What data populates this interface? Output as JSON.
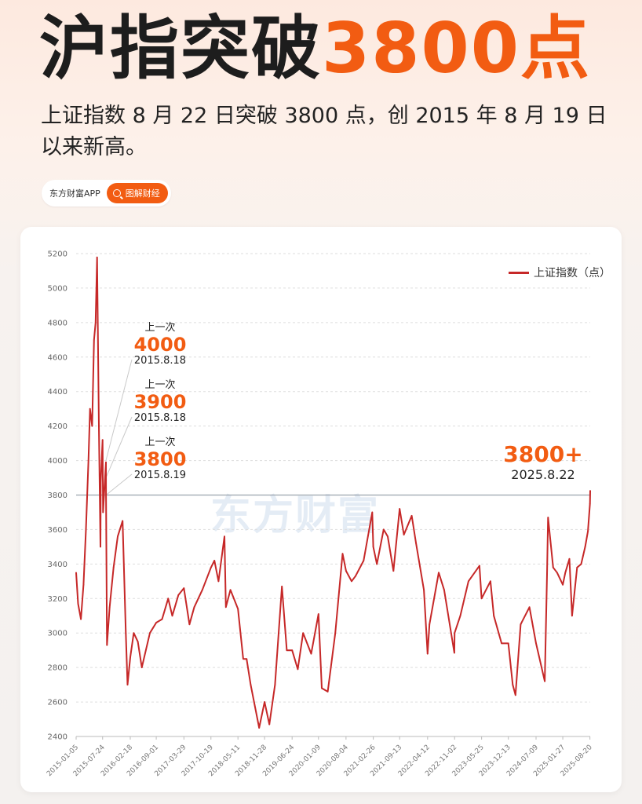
{
  "header": {
    "title_main": "沪指突破",
    "title_accent": "3800点",
    "subtitle": "上证指数 8 月 22 日突破 3800 点，创 2015 年 8 月 19 日以来新高。"
  },
  "source": {
    "name": "东方财富APP",
    "tag": "图解财经"
  },
  "watermark": "东方财富",
  "colors": {
    "accent": "#f25c12",
    "line": "#c62828",
    "grid": "#dddddd"
  },
  "annotations": {
    "a4000": {
      "label": "上一次",
      "value": "4000",
      "date": "2015.8.18"
    },
    "a3900": {
      "label": "上一次",
      "value": "3900",
      "date": "2015.8.18"
    },
    "a3800": {
      "label": "上一次",
      "value": "3800",
      "date": "2015.8.19"
    },
    "latest": {
      "value": "3800+",
      "date": "2025.8.22"
    }
  },
  "chart_data": {
    "type": "line",
    "legend": "上证指数（点）",
    "legend_position": "top-right",
    "grid": true,
    "ylim": [
      2400,
      5200
    ],
    "yticks": [
      2400,
      2600,
      2800,
      3000,
      3200,
      3400,
      3600,
      3800,
      4000,
      4200,
      4400,
      4600,
      4800,
      5000,
      5200
    ],
    "reference_line": 3800,
    "xlim": [
      "2015-01-05",
      "2025-08-22"
    ],
    "xticks": [
      "2015-01-05",
      "2015-07-24",
      "2016-02-18",
      "2016-09-01",
      "2017-03-29",
      "2017-10-19",
      "2018-05-11",
      "2018-11-28",
      "2019-06-24",
      "2020-01-09",
      "2020-08-04",
      "2021-02-26",
      "2021-09-13",
      "2022-04-12",
      "2022-11-02",
      "2023-05-25",
      "2023-12-13",
      "2024-07-09",
      "2025-01-27",
      "2025-08-20"
    ],
    "series": [
      {
        "name": "上证指数（点）",
        "x": [
          "2015-01-05",
          "2015-01-20",
          "2015-02-10",
          "2015-03-02",
          "2015-03-20",
          "2015-04-08",
          "2015-04-20",
          "2015-05-06",
          "2015-05-20",
          "2015-06-01",
          "2015-06-12",
          "2015-06-26",
          "2015-07-08",
          "2015-07-10",
          "2015-07-24",
          "2015-07-27",
          "2015-08-18",
          "2015-08-19",
          "2015-08-21",
          "2015-08-26",
          "2015-09-15",
          "2015-10-15",
          "2015-11-15",
          "2015-12-22",
          "2016-01-15",
          "2016-01-28",
          "2016-02-18",
          "2016-03-15",
          "2016-04-15",
          "2016-05-15",
          "2016-07-15",
          "2016-09-01",
          "2016-10-15",
          "2016-11-30",
          "2016-12-31",
          "2017-02-15",
          "2017-03-29",
          "2017-05-10",
          "2017-06-15",
          "2017-08-15",
          "2017-10-19",
          "2017-11-14",
          "2017-12-15",
          "2018-01-29",
          "2018-02-09",
          "2018-03-15",
          "2018-05-11",
          "2018-06-20",
          "2018-07-15",
          "2018-08-15",
          "2018-10-18",
          "2018-11-28",
          "2019-01-03",
          "2019-02-15",
          "2019-04-08",
          "2019-05-15",
          "2019-06-24",
          "2019-08-06",
          "2019-09-15",
          "2019-11-15",
          "2020-01-09",
          "2020-02-03",
          "2020-03-19",
          "2020-05-15",
          "2020-07-09",
          "2020-08-04",
          "2020-09-15",
          "2020-10-15",
          "2020-12-15",
          "2021-02-18",
          "2021-02-26",
          "2021-03-25",
          "2021-05-15",
          "2021-06-15",
          "2021-07-28",
          "2021-09-13",
          "2021-10-15",
          "2021-12-13",
          "2022-01-15",
          "2022-03-15",
          "2022-04-12",
          "2022-04-26",
          "2022-07-05",
          "2022-08-15",
          "2022-10-31",
          "2022-11-02",
          "2022-12-15",
          "2023-02-15",
          "2023-05-09",
          "2023-05-25",
          "2023-07-31",
          "2023-08-25",
          "2023-10-23",
          "2023-12-13",
          "2024-01-15",
          "2024-02-05",
          "2024-03-15",
          "2024-05-20",
          "2024-07-09",
          "2024-09-13",
          "2024-09-30",
          "2024-10-08",
          "2024-11-15",
          "2024-12-15",
          "2025-01-27",
          "2025-02-15",
          "2025-03-18",
          "2025-04-07",
          "2025-05-15",
          "2025-06-15",
          "2025-07-15",
          "2025-08-05",
          "2025-08-20",
          "2025-08-22"
        ],
        "y": [
          3350,
          3170,
          3080,
          3280,
          3600,
          4000,
          4300,
          4200,
          4700,
          4800,
          5178,
          4200,
          3500,
          3880,
          4120,
          3700,
          3990,
          3800,
          3510,
          2930,
          3150,
          3380,
          3560,
          3650,
          3000,
          2700,
          2860,
          3000,
          2950,
          2800,
          3000,
          3060,
          3080,
          3200,
          3100,
          3220,
          3260,
          3050,
          3150,
          3250,
          3380,
          3420,
          3300,
          3560,
          3150,
          3250,
          3140,
          2850,
          2850,
          2700,
          2450,
          2600,
          2470,
          2700,
          3270,
          2900,
          2900,
          2790,
          3000,
          2880,
          3110,
          2680,
          2660,
          3000,
          3460,
          3360,
          3300,
          3330,
          3420,
          3700,
          3500,
          3400,
          3600,
          3560,
          3360,
          3720,
          3570,
          3680,
          3520,
          3250,
          2880,
          3050,
          3350,
          3250,
          2885,
          3000,
          3100,
          3300,
          3390,
          3200,
          3300,
          3100,
          2940,
          2940,
          2700,
          2640,
          3050,
          3150,
          2940,
          2720,
          3340,
          3670,
          3380,
          3350,
          3280,
          3350,
          3430,
          3100,
          3380,
          3400,
          3500,
          3590,
          3750,
          3825
        ]
      }
    ]
  }
}
